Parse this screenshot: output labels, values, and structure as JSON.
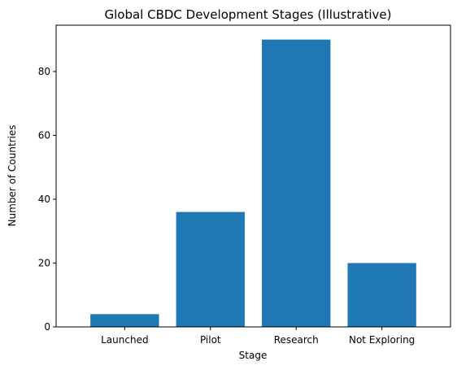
{
  "chart_data": {
    "type": "bar",
    "title": "Global CBDC Development Stages (Illustrative)",
    "xlabel": "Stage",
    "ylabel": "Number of Countries",
    "categories": [
      "Launched",
      "Pilot",
      "Research",
      "Not Exploring"
    ],
    "values": [
      4,
      36,
      90,
      20
    ],
    "ylim": [
      0,
      94.5
    ],
    "yticks": [
      0,
      20,
      40,
      60,
      80
    ],
    "grid": false,
    "bar_color": "#1f77b4"
  }
}
